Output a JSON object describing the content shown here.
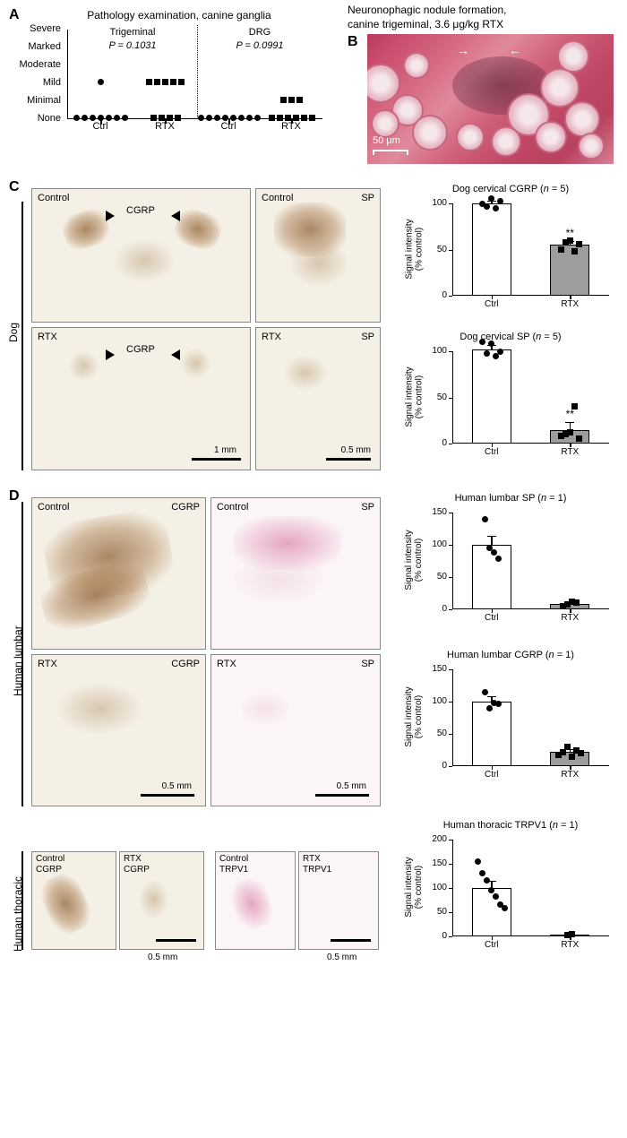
{
  "panelA": {
    "label": "A",
    "title": "Pathology examination, canine ganglia",
    "y_categories": [
      "Severe",
      "Marked",
      "Moderate",
      "Mild",
      "Minimal",
      "None"
    ],
    "subplots": [
      {
        "title": "Trigeminal",
        "pvalue": "P = 0.1031",
        "groups": [
          {
            "label": "Ctrl",
            "marker": "circle",
            "points_by_category": {
              "Mild": 1,
              "None": 7
            }
          },
          {
            "label": "RTX",
            "marker": "square",
            "points_by_category": {
              "Mild": 5,
              "None": 4
            }
          }
        ]
      },
      {
        "title": "DRG",
        "pvalue": "P = 0.0991",
        "groups": [
          {
            "label": "Ctrl",
            "marker": "circle",
            "points_by_category": {
              "None": 8
            }
          },
          {
            "label": "RTX",
            "marker": "square",
            "points_by_category": {
              "Minimal": 3,
              "None": 6
            }
          }
        ]
      }
    ]
  },
  "panelB": {
    "label": "B",
    "title_line1": "Neuronophagic nodule formation,",
    "title_line2": "canine trigeminal, 3.6 μg/kg RTX",
    "scalebar": "50 μm",
    "bg_colors": [
      "#b83a5e",
      "#d66880",
      "#e08a9c"
    ]
  },
  "panelC": {
    "label": "C",
    "side_label": "Dog",
    "images": [
      {
        "row": "Control",
        "marker_label": "CGRP"
      },
      {
        "row": "Control",
        "right_label": "SP"
      },
      {
        "row": "RTX",
        "marker_label": "CGRP"
      },
      {
        "row": "RTX",
        "right_label": "SP"
      }
    ],
    "scalebars": [
      "1 mm",
      "0.5 mm"
    ],
    "charts": [
      {
        "title": "Dog cervical CGRP (n = 5)",
        "ylabel_top": "Signal intensity",
        "ylabel_bottom": "(% control)",
        "ylim": [
          0,
          100
        ],
        "ystep": 50,
        "bars": [
          {
            "label": "Ctrl",
            "value": 100,
            "err": 3,
            "color": "#ffffff",
            "marker": "circle",
            "points": [
              100,
              97,
              105,
              95,
              102
            ],
            "sig": ""
          },
          {
            "label": "RTX",
            "value": 55,
            "err": 4,
            "color": "#9d9d9d",
            "marker": "square",
            "points": [
              50,
              58,
              60,
              48,
              56
            ],
            "sig": "**"
          }
        ]
      },
      {
        "title": "Dog cervical SP (n = 5)",
        "ylabel_top": "Signal intensity",
        "ylabel_bottom": "(% control)",
        "ylim": [
          0,
          100
        ],
        "ystep": 50,
        "bars": [
          {
            "label": "Ctrl",
            "value": 102,
            "err": 5,
            "color": "#ffffff",
            "marker": "circle",
            "points": [
              110,
              98,
              108,
              95,
              100
            ],
            "sig": ""
          },
          {
            "label": "RTX",
            "value": 15,
            "err": 8,
            "color": "#9d9d9d",
            "marker": "square",
            "points": [
              8,
              10,
              12,
              40,
              5
            ],
            "sig": "**"
          }
        ]
      }
    ]
  },
  "panelD": {
    "label": "D",
    "side_labels": [
      "Human lumbar",
      "Human thoracic"
    ],
    "lumbar_images": [
      {
        "row": "Control",
        "stain": "CGRP"
      },
      {
        "row": "Control",
        "stain": "SP"
      },
      {
        "row": "RTX",
        "stain": "CGRP"
      },
      {
        "row": "RTX",
        "stain": "SP"
      }
    ],
    "thoracic_images": [
      {
        "row": "Control",
        "stain": "CGRP"
      },
      {
        "row": "RTX",
        "stain": "CGRP"
      },
      {
        "row": "Control",
        "stain": "TRPV1"
      },
      {
        "row": "RTX",
        "stain": "TRPV1"
      }
    ],
    "scalebar": "0.5 mm",
    "charts": [
      {
        "title": "Human lumbar SP (n = 1)",
        "ylabel_top": "Signal intensity",
        "ylabel_bottom": "(% control)",
        "ylim": [
          0,
          150
        ],
        "ystep": 50,
        "bars": [
          {
            "label": "Ctrl",
            "value": 100,
            "err": 14,
            "color": "#ffffff",
            "marker": "circle",
            "points": [
              140,
              95,
              88,
              78
            ],
            "sig": ""
          },
          {
            "label": "RTX",
            "value": 8,
            "err": 3,
            "color": "#9d9d9d",
            "marker": "square",
            "points": [
              5,
              7,
              12,
              10
            ],
            "sig": ""
          }
        ]
      },
      {
        "title": "Human lumbar CGRP (n = 1)",
        "ylabel_top": "Signal intensity",
        "ylabel_bottom": "(% control)",
        "ylim": [
          0,
          150
        ],
        "ystep": 50,
        "bars": [
          {
            "label": "Ctrl",
            "value": 100,
            "err": 8,
            "color": "#ffffff",
            "marker": "circle",
            "points": [
              115,
              90,
              98,
              96
            ],
            "sig": ""
          },
          {
            "label": "RTX",
            "value": 22,
            "err": 5,
            "color": "#9d9d9d",
            "marker": "square",
            "points": [
              18,
              22,
              30,
              14,
              25,
              20
            ],
            "sig": ""
          }
        ]
      },
      {
        "title": "Human thoracic TRPV1 (n = 1)",
        "ylabel_top": "Signal intensity",
        "ylabel_bottom": "(% control)",
        "ylim": [
          0,
          200
        ],
        "ystep": 50,
        "bars": [
          {
            "label": "Ctrl",
            "value": 100,
            "err": 14,
            "color": "#ffffff",
            "marker": "circle",
            "points": [
              155,
              130,
              115,
              95,
              82,
              65,
              58
            ],
            "sig": ""
          },
          {
            "label": "RTX",
            "value": 4,
            "err": 2,
            "color": "#9d9d9d",
            "marker": "square",
            "points": [
              3,
              5
            ],
            "sig": ""
          }
        ]
      }
    ]
  }
}
